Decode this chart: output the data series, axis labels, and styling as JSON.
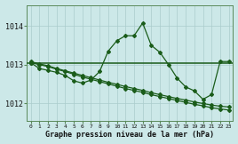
{
  "title": "Graphe pression niveau de la mer (hPa)",
  "bg_color": "#cce8e8",
  "line_color": "#1a5c1a",
  "grid_color": "#aacccc",
  "ylabel_ticks": [
    1012,
    1013,
    1014
  ],
  "xlim": [
    -0.5,
    23.5
  ],
  "ylim": [
    1011.55,
    1014.55
  ],
  "x_labels": [
    "0",
    "1",
    "2",
    "3",
    "4",
    "5",
    "6",
    "7",
    "8",
    "9",
    "10",
    "11",
    "12",
    "13",
    "14",
    "15",
    "16",
    "17",
    "18",
    "19",
    "20",
    "21",
    "22",
    "23"
  ],
  "series1": {
    "x": [
      0,
      1,
      2,
      3,
      4,
      5,
      6,
      7,
      8,
      9,
      10,
      11,
      12,
      13,
      14,
      15,
      16,
      17,
      18,
      19,
      20,
      21,
      22,
      23
    ],
    "y": [
      1013.05,
      1012.9,
      1012.85,
      1012.8,
      1012.72,
      1012.58,
      1012.52,
      1012.6,
      1012.82,
      1013.35,
      1013.62,
      1013.75,
      1013.75,
      1014.08,
      1013.5,
      1013.32,
      1013.0,
      1012.65,
      1012.42,
      1012.32,
      1012.1,
      1012.22,
      1013.08,
      1013.08
    ]
  },
  "series2": {
    "x": [
      0,
      23
    ],
    "y": [
      1013.05,
      1013.05
    ]
  },
  "series3": {
    "x": [
      0,
      1,
      2,
      3,
      4,
      5,
      6,
      7,
      8,
      9,
      10,
      11,
      12,
      13,
      14,
      15,
      16,
      17,
      18,
      19,
      20,
      21,
      22,
      23
    ],
    "y": [
      1013.05,
      1013.0,
      1012.95,
      1012.88,
      1012.82,
      1012.75,
      1012.68,
      1012.62,
      1012.56,
      1012.5,
      1012.44,
      1012.38,
      1012.33,
      1012.28,
      1012.22,
      1012.17,
      1012.12,
      1012.07,
      1012.02,
      1011.97,
      1011.93,
      1011.88,
      1011.85,
      1011.82
    ]
  },
  "series4": {
    "x": [
      0,
      1,
      2,
      3,
      4,
      5,
      6,
      7,
      8,
      9,
      10,
      11,
      12,
      13,
      14,
      15,
      16,
      17,
      18,
      19,
      20,
      21,
      22,
      23
    ],
    "y": [
      1013.08,
      1013.02,
      1012.97,
      1012.9,
      1012.84,
      1012.78,
      1012.72,
      1012.66,
      1012.6,
      1012.54,
      1012.49,
      1012.43,
      1012.38,
      1012.33,
      1012.27,
      1012.22,
      1012.17,
      1012.12,
      1012.08,
      1012.03,
      1011.99,
      1011.95,
      1011.92,
      1011.9
    ]
  },
  "hline_y": 1013.05,
  "marker": "D",
  "markersize": 2.0,
  "linewidth": 0.9
}
